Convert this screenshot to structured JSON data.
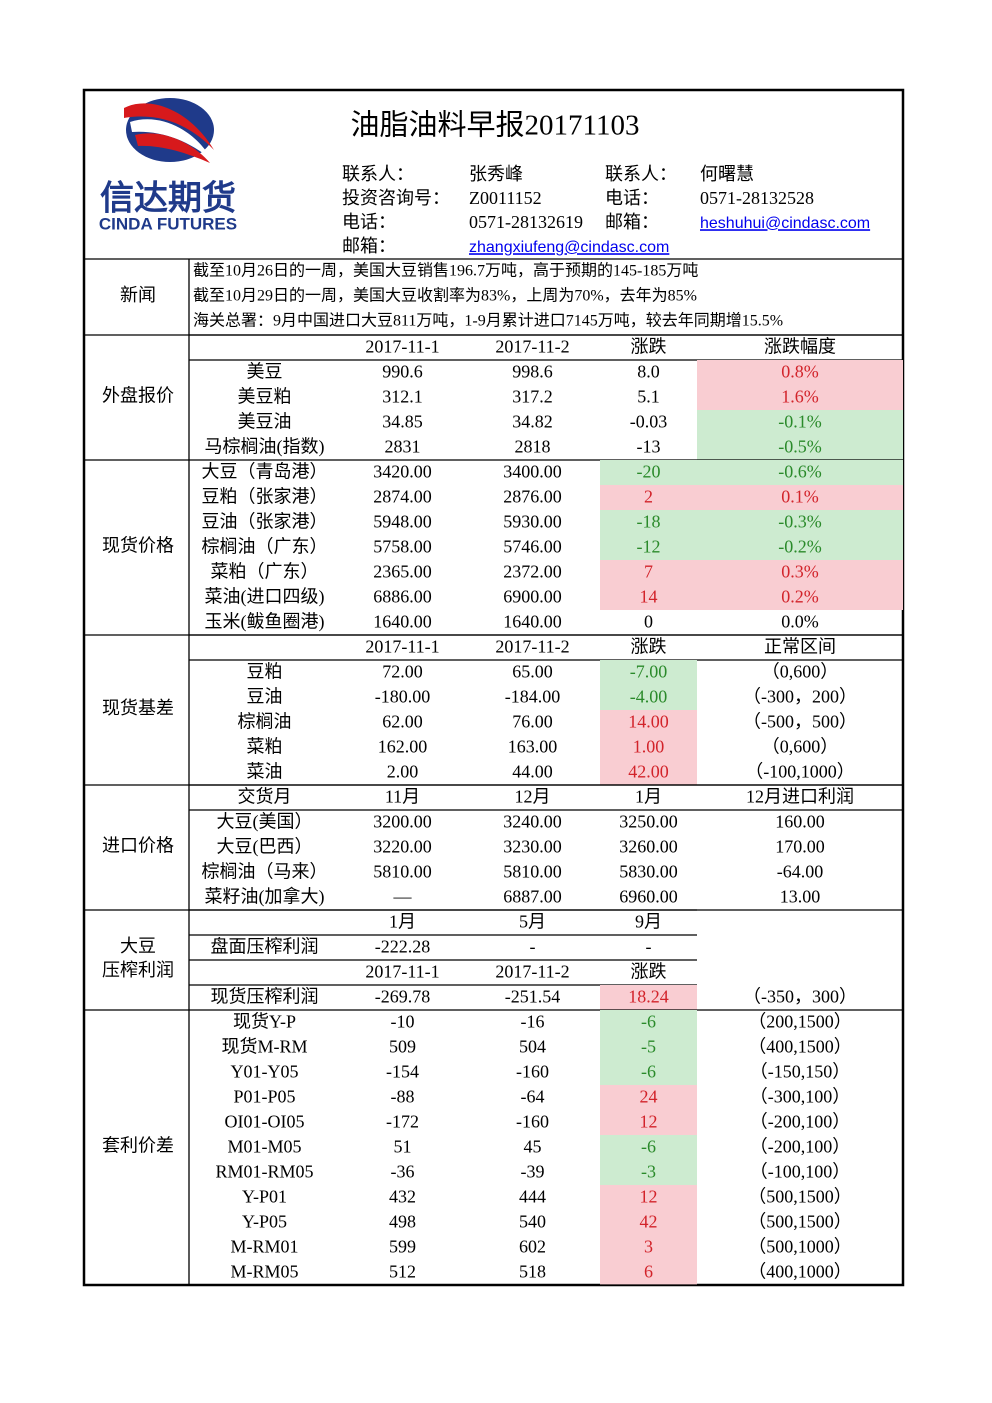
{
  "header": {
    "logo_cn": "信达期货",
    "logo_en": "CINDA FUTURES",
    "title": "油脂油料早报20171103",
    "contacts": [
      [
        "联系人：",
        "张秀峰",
        "联系人：",
        "何曙慧"
      ],
      [
        "投资咨询号：",
        "Z0011152",
        "电话：",
        "0571-28132528"
      ],
      [
        "电话：",
        "0571-28132619",
        "邮箱：",
        "heshuhui@cindasc.com"
      ],
      [
        "邮箱：",
        "zhangxiufeng@cindasc.com"
      ]
    ]
  },
  "news": {
    "label": "新闻",
    "lines": [
      "截至10月26日的一周，美国大豆销售196.7万吨，高于预期的145-185万吨",
      "截至10月29日的一周，美国大豆收割率为83%，上周为70%，去年为85%",
      "海关总署：9月中国进口大豆811万吨，1-9月累计进口7145万吨，较去年同期增15.5%"
    ]
  },
  "sections": [
    {
      "label": [
        "外盘报价"
      ],
      "header_rows": [
        0
      ],
      "highlight_cols": [
        4
      ],
      "rows": [
        [
          null,
          "2017-11-1",
          "2017-11-2",
          "涨跌",
          "涨跌幅度"
        ],
        [
          "美豆",
          "990.6",
          "998.6",
          "8.0",
          "0.8%"
        ],
        [
          "美豆粕",
          "312.1",
          "317.2",
          "5.1",
          "1.6%"
        ],
        [
          "美豆油",
          "34.85",
          "34.82",
          "-0.03",
          "-0.1%"
        ],
        [
          "马棕榈油(指数)",
          "2831",
          "2818",
          "-13",
          "-0.5%"
        ]
      ]
    },
    {
      "label": [
        "现货价格"
      ],
      "header_rows": [],
      "highlight_cols": [
        3,
        4
      ],
      "rows": [
        [
          "大豆（青岛港）",
          "3420.00",
          "3400.00",
          "-20",
          "-0.6%"
        ],
        [
          "豆粕（张家港）",
          "2874.00",
          "2876.00",
          "2",
          "0.1%"
        ],
        [
          "豆油（张家港）",
          "5948.00",
          "5930.00",
          "-18",
          "-0.3%"
        ],
        [
          "棕榈油（广东）",
          "5758.00",
          "5746.00",
          "-12",
          "-0.2%"
        ],
        [
          "菜粕（广东）",
          "2365.00",
          "2372.00",
          "7",
          "0.3%"
        ],
        [
          "菜油(进口四级)",
          "6886.00",
          "6900.00",
          "14",
          "0.2%"
        ],
        [
          "玉米(鲅鱼圈港)",
          "1640.00",
          "1640.00",
          "0",
          "0.0%"
        ]
      ]
    },
    {
      "label": [
        "现货基差"
      ],
      "header_rows": [
        0
      ],
      "highlight_cols": [
        3
      ],
      "rows": [
        [
          null,
          "2017-11-1",
          "2017-11-2",
          "涨跌",
          "正常区间"
        ],
        [
          "豆粕",
          "72.00",
          "65.00",
          "-7.00",
          "（0,600）"
        ],
        [
          "豆油",
          "-180.00",
          "-184.00",
          "-4.00",
          "（-300，200）"
        ],
        [
          "棕榈油",
          "62.00",
          "76.00",
          "14.00",
          "（-500，500）"
        ],
        [
          "菜粕",
          "162.00",
          "163.00",
          "1.00",
          "（0,600）"
        ],
        [
          "菜油",
          "2.00",
          "44.00",
          "42.00",
          "（-100,1000）"
        ]
      ]
    },
    {
      "label": [
        "进口价格"
      ],
      "header_rows": [
        0
      ],
      "highlight_cols": [],
      "rows": [
        [
          "交货月",
          "11月",
          "12月",
          "1月",
          "12月进口利润"
        ],
        [
          "大豆(美国）",
          "3200.00",
          "3240.00",
          "3250.00",
          "160.00"
        ],
        [
          "大豆(巴西）",
          "3220.00",
          "3230.00",
          "3260.00",
          "170.00"
        ],
        [
          "棕榈油（马来）",
          "5810.00",
          "5810.00",
          "5830.00",
          "-64.00"
        ],
        [
          "菜籽油(加拿大)",
          "—",
          "6887.00",
          "6960.00",
          "13.00"
        ]
      ]
    },
    {
      "label": [
        "大豆",
        "压榨利润"
      ],
      "header_rows": [
        0,
        2
      ],
      "highlight_cols": [
        3
      ],
      "rows": [
        [
          null,
          "1月",
          "5月",
          "9月",
          null
        ],
        [
          "盘面压榨利润",
          "-222.28",
          "-",
          "-",
          null
        ],
        [
          null,
          "2017-11-1",
          "2017-11-2",
          "涨跌",
          null
        ],
        [
          "现货压榨利润",
          "-269.78",
          "-251.54",
          "18.24",
          "（-350，300）"
        ]
      ]
    },
    {
      "label": [
        "套利价差"
      ],
      "header_rows": [],
      "highlight_cols": [
        3
      ],
      "rows": [
        [
          "现货Y-P",
          "-10",
          "-16",
          "-6",
          "（200,1500）"
        ],
        [
          "现货M-RM",
          "509",
          "504",
          "-5",
          "（400,1500）"
        ],
        [
          "Y01-Y05",
          "-154",
          "-160",
          "-6",
          "（-150,150）"
        ],
        [
          "P01-P05",
          "-88",
          "-64",
          "24",
          "（-300,100）"
        ],
        [
          "OI01-OI05",
          "-172",
          "-160",
          "12",
          "（-200,100）"
        ],
        [
          "M01-M05",
          "51",
          "45",
          "-6",
          "（-200,100）"
        ],
        [
          "RM01-RM05",
          "-36",
          "-39",
          "-3",
          "（-100,100）"
        ],
        [
          "Y-P01",
          "432",
          "444",
          "12",
          "（500,1500）"
        ],
        [
          "Y-P05",
          "498",
          "540",
          "42",
          "（500,1500）"
        ],
        [
          "M-RM01",
          "599",
          "602",
          "3",
          "（500,1000）"
        ],
        [
          "M-RM05",
          "512",
          "518",
          "6",
          "（400,1000）"
        ]
      ]
    }
  ]
}
